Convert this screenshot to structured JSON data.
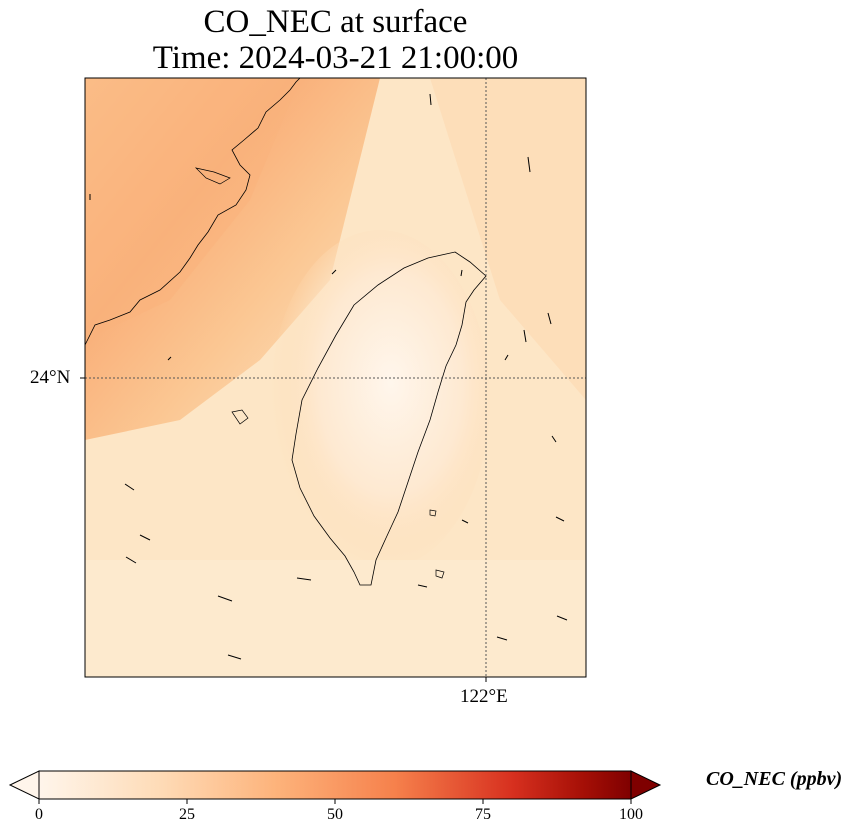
{
  "title": {
    "line1": "CO_NEC at surface",
    "line2": "Time: 2024-03-21 21:00:00"
  },
  "map": {
    "lat_label": "24°N",
    "lon_label": "122°E",
    "region": "Taiwan Strait / Taiwan",
    "gridline_style": "dotted",
    "field_description_colors": {
      "background": "#fde6c4",
      "plume": "#f9b47d",
      "island_low": "#fff4e6"
    }
  },
  "colorbar": {
    "label": "CO_NEC (ppbv)",
    "ticks": [
      "0",
      "25",
      "50",
      "75",
      "100"
    ],
    "range": [
      0,
      100
    ],
    "colormap": [
      "#fff5eb",
      "#fdd5ab",
      "#fd9f63",
      "#eb5f35",
      "#c1130a",
      "#7f0000"
    ],
    "extend": "both"
  },
  "wind_vectors_visible": true
}
